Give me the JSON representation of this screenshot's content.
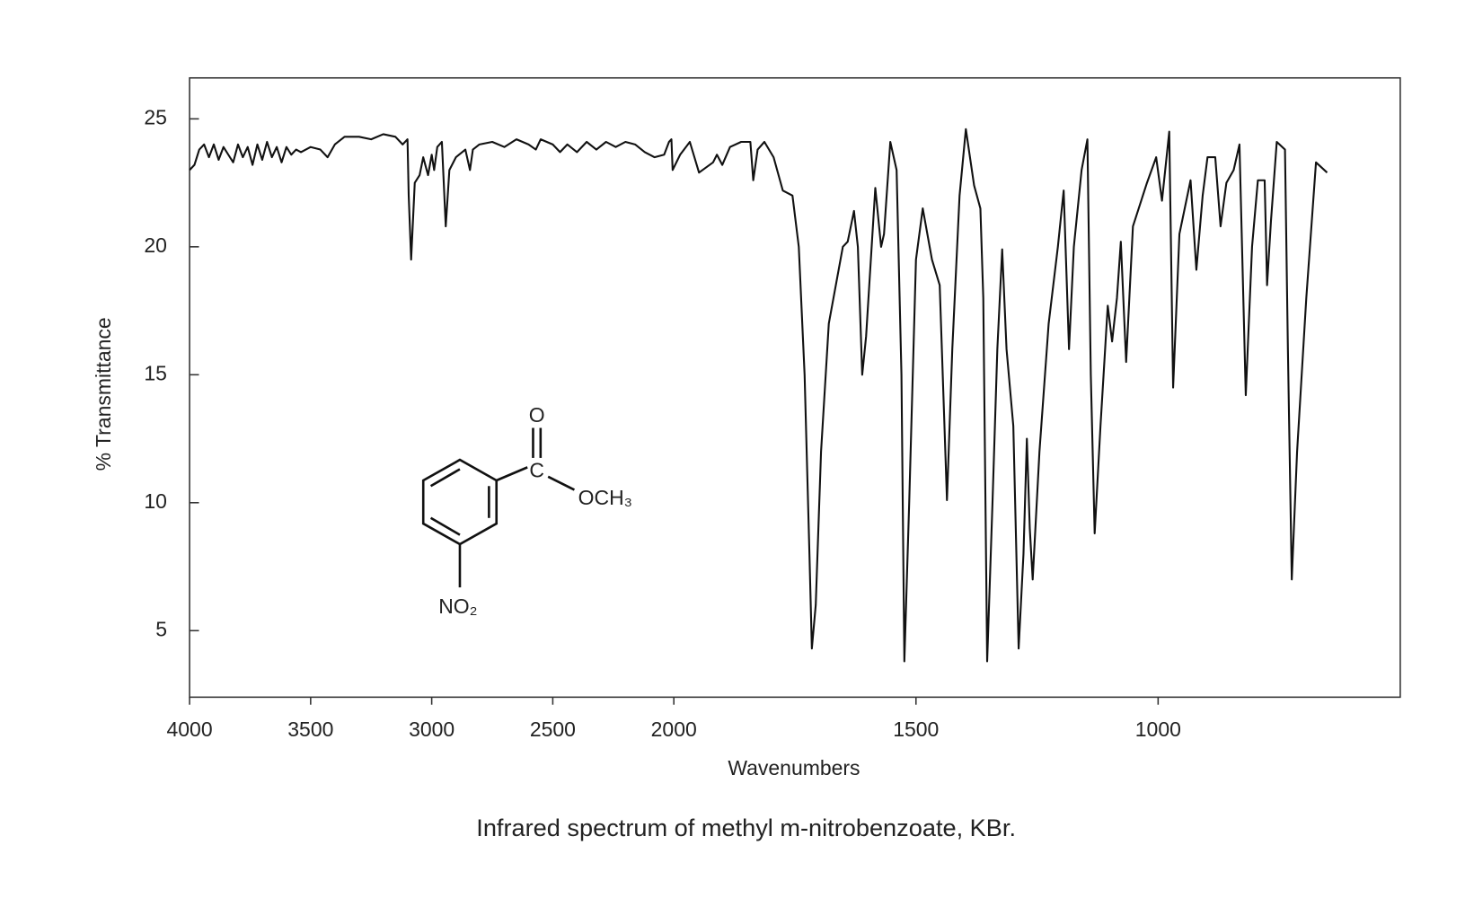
{
  "chart_data": {
    "type": "line",
    "title": "Infrared spectrum of methyl m-nitrobenzoate, KBr.",
    "xlabel": "Wavenumbers",
    "ylabel": "% Transmittance",
    "x_scale_change_at": 2000,
    "xlim": [
      4000,
      500
    ],
    "ylim": [
      2.4,
      26.6
    ],
    "xticks": [
      4000,
      3500,
      3000,
      2500,
      2000,
      1500,
      1000
    ],
    "yticks": [
      5,
      10,
      15,
      20,
      25
    ],
    "color": "#111111",
    "structure_labels": {
      "carbonyl_o": "O",
      "carbon": "C",
      "ester": "OCH₃",
      "nitro": "NO₂"
    },
    "x": [
      4000,
      3980,
      3960,
      3940,
      3920,
      3900,
      3880,
      3860,
      3840,
      3820,
      3800,
      3780,
      3760,
      3740,
      3720,
      3700,
      3680,
      3660,
      3640,
      3620,
      3600,
      3580,
      3560,
      3540,
      3500,
      3460,
      3430,
      3400,
      3360,
      3300,
      3250,
      3200,
      3150,
      3120,
      3100,
      3095,
      3085,
      3070,
      3050,
      3035,
      3015,
      3000,
      2990,
      2977,
      2958,
      2942,
      2927,
      2900,
      2861,
      2842,
      2830,
      2803,
      2750,
      2700,
      2650,
      2600,
      2570,
      2550,
      2500,
      2470,
      2440,
      2400,
      2360,
      2320,
      2280,
      2240,
      2200,
      2160,
      2120,
      2080,
      2040,
      2020,
      2010,
      2005,
      1987,
      1967,
      1948,
      1919,
      1911,
      1900,
      1884,
      1861,
      1842,
      1836,
      1827,
      1813,
      1794,
      1775,
      1755,
      1742,
      1730,
      1720,
      1715,
      1707,
      1696,
      1680,
      1651,
      1641,
      1628,
      1620,
      1611,
      1603,
      1584,
      1572,
      1566,
      1553,
      1540,
      1530,
      1524,
      1514,
      1500,
      1486,
      1467,
      1451,
      1436,
      1425,
      1410,
      1397,
      1380,
      1367,
      1361,
      1353,
      1342,
      1332,
      1322,
      1313,
      1299,
      1288,
      1278,
      1271,
      1265,
      1259,
      1245,
      1226,
      1207,
      1195,
      1184,
      1174,
      1158,
      1146,
      1139,
      1131,
      1119,
      1104,
      1095,
      1085,
      1077,
      1066,
      1052,
      1023,
      1004,
      992,
      977,
      969,
      956,
      933,
      921,
      908,
      898,
      882,
      871,
      859,
      844,
      832,
      819,
      806,
      794,
      780,
      775,
      767,
      755,
      738,
      732,
      724,
      713,
      694,
      674,
      651
    ],
    "values": [
      23.0,
      23.2,
      23.8,
      24.0,
      23.5,
      24.0,
      23.4,
      23.9,
      23.6,
      23.3,
      24.0,
      23.5,
      23.9,
      23.2,
      24.0,
      23.4,
      24.1,
      23.5,
      23.9,
      23.3,
      23.9,
      23.6,
      23.8,
      23.7,
      23.9,
      23.8,
      23.5,
      24.0,
      24.3,
      24.3,
      24.2,
      24.4,
      24.3,
      24.0,
      24.2,
      22.0,
      19.5,
      22.5,
      22.8,
      23.5,
      22.8,
      23.6,
      23.0,
      23.9,
      24.1,
      20.8,
      23.0,
      23.5,
      23.8,
      23.0,
      23.8,
      24.0,
      24.1,
      23.9,
      24.2,
      24.0,
      23.8,
      24.2,
      24.0,
      23.7,
      24.0,
      23.7,
      24.1,
      23.8,
      24.1,
      23.9,
      24.1,
      24.0,
      23.7,
      23.5,
      23.6,
      24.1,
      24.2,
      23.0,
      23.6,
      24.1,
      22.9,
      23.3,
      23.6,
      23.2,
      23.9,
      24.1,
      24.1,
      22.6,
      23.8,
      24.1,
      23.5,
      22.2,
      22.0,
      20.0,
      15.0,
      8.0,
      4.3,
      6.0,
      12.0,
      17.0,
      20.0,
      20.2,
      21.4,
      20.0,
      15.0,
      16.5,
      22.3,
      20.0,
      20.5,
      24.1,
      23.0,
      15.0,
      3.8,
      10.0,
      19.5,
      21.5,
      19.5,
      18.5,
      10.1,
      16.0,
      22.0,
      24.6,
      22.4,
      21.5,
      18.0,
      3.8,
      10.0,
      16.0,
      19.9,
      16.0,
      13.0,
      4.3,
      8.0,
      12.5,
      9.0,
      7.0,
      12.0,
      17.0,
      20.0,
      22.2,
      16.0,
      20.0,
      23.0,
      24.2,
      15.0,
      8.8,
      13.0,
      17.7,
      16.3,
      18.0,
      20.2,
      15.5,
      20.8,
      22.5,
      23.5,
      21.8,
      24.5,
      14.5,
      20.5,
      22.6,
      19.1,
      22.0,
      23.5,
      23.5,
      20.8,
      22.5,
      23.0,
      24.0,
      14.2,
      20.0,
      22.6,
      22.6,
      18.5,
      21.0,
      24.1,
      23.8,
      16.0,
      7.0,
      12.0,
      18.0,
      23.3,
      22.9
    ]
  }
}
